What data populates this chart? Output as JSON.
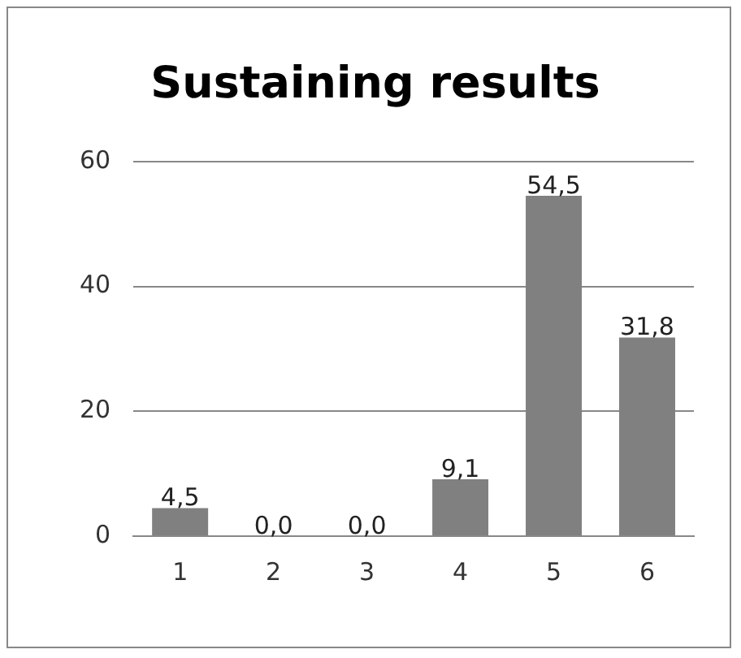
{
  "chart_data": {
    "type": "bar",
    "title": "Sustaining results",
    "categories": [
      "1",
      "2",
      "3",
      "4",
      "5",
      "6"
    ],
    "values": [
      4.5,
      0.0,
      0.0,
      9.1,
      54.5,
      31.8
    ],
    "value_labels": [
      "4,5",
      "0,0",
      "0,0",
      "9,1",
      "54,5",
      "31,8"
    ],
    "color": "#808080",
    "ylim": [
      0,
      60
    ],
    "yticks": [
      0,
      20,
      40,
      60
    ],
    "grid": "y",
    "legend": false
  }
}
